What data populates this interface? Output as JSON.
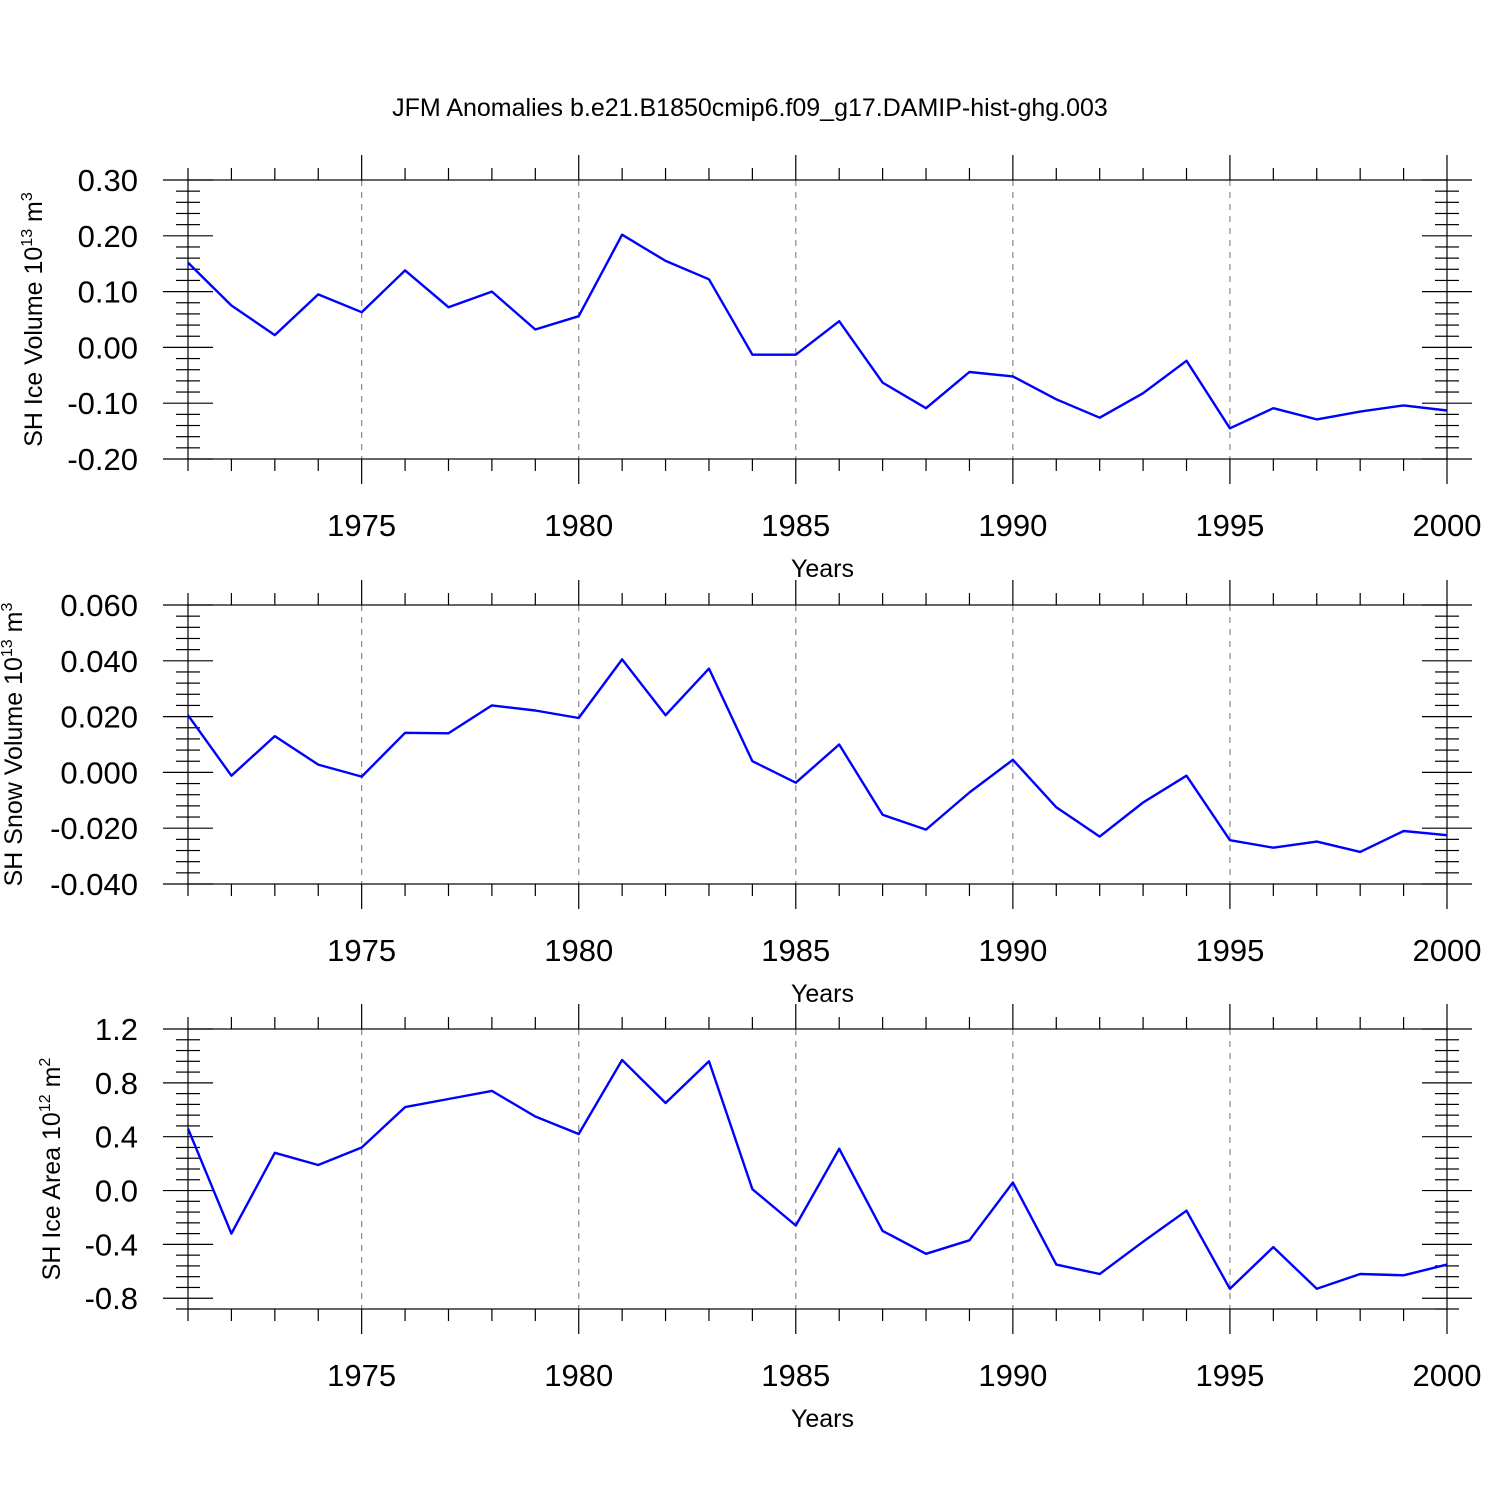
{
  "title": "JFM Anomalies b.e21.B1850cmip6.f09_g17.DAMIP-hist-ghg.003",
  "colors": {
    "series": "#0000ff",
    "grid": "#888888",
    "axis": "#000000"
  },
  "chart_data": [
    {
      "type": "line",
      "ylabel": {
        "main": "SH Ice Volume 10",
        "exp": "13",
        "unit": " m",
        "unit_exp": "3"
      },
      "xlabel": "Years",
      "xlim": [
        1971,
        2000
      ],
      "ylim": [
        -0.2,
        0.3
      ],
      "yticks": [
        -0.2,
        -0.1,
        0.0,
        0.1,
        0.2,
        0.3
      ],
      "yticklabels": [
        "-0.20",
        "-0.10",
        "0.00",
        "0.10",
        "0.20",
        "0.30"
      ],
      "xticks": [
        1975,
        1980,
        1985,
        1990,
        1995,
        2000
      ],
      "xticklabels": [
        "1975",
        "1980",
        "1985",
        "1990",
        "1995",
        "2000"
      ],
      "grid": "vertical dashed at labeled years",
      "x": [
        1971,
        1972,
        1973,
        1974,
        1975,
        1976,
        1977,
        1978,
        1979,
        1980,
        1981,
        1982,
        1983,
        1984,
        1985,
        1986,
        1987,
        1988,
        1989,
        1990,
        1991,
        1992,
        1993,
        1994,
        1995,
        1996,
        1997,
        1998,
        1999,
        2000
      ],
      "values": [
        0.152,
        0.075,
        0.022,
        0.095,
        0.063,
        0.138,
        0.072,
        0.1,
        0.032,
        0.056,
        0.202,
        0.155,
        0.122,
        -0.013,
        -0.013,
        0.047,
        -0.063,
        -0.109,
        -0.044,
        -0.052,
        -0.093,
        -0.126,
        -0.082,
        -0.024,
        -0.145,
        -0.109,
        -0.129,
        -0.115,
        -0.104,
        -0.113
      ]
    },
    {
      "type": "line",
      "ylabel": {
        "main": "SH Snow Volume 10",
        "exp": "13",
        "unit": " m",
        "unit_exp": "3"
      },
      "xlabel": "Years",
      "xlim": [
        1971,
        2000
      ],
      "ylim": [
        -0.04,
        0.06
      ],
      "yticks": [
        -0.04,
        -0.02,
        0.0,
        0.02,
        0.04,
        0.06
      ],
      "yticklabels": [
        "-0.040",
        "-0.020",
        "0.000",
        "0.020",
        "0.040",
        "0.060"
      ],
      "xticks": [
        1975,
        1980,
        1985,
        1990,
        1995,
        2000
      ],
      "xticklabels": [
        "1975",
        "1980",
        "1985",
        "1990",
        "1995",
        "2000"
      ],
      "grid": "vertical dashed at labeled years",
      "x": [
        1971,
        1972,
        1973,
        1974,
        1975,
        1976,
        1977,
        1978,
        1979,
        1980,
        1981,
        1982,
        1983,
        1984,
        1985,
        1986,
        1987,
        1988,
        1989,
        1990,
        1991,
        1992,
        1993,
        1994,
        1995,
        1996,
        1997,
        1998,
        1999,
        2000
      ],
      "values": [
        0.0205,
        -0.0012,
        0.013,
        0.0028,
        -0.0015,
        0.0142,
        0.014,
        0.024,
        0.0222,
        0.0195,
        0.0405,
        0.0205,
        0.0372,
        0.004,
        -0.0037,
        0.01,
        -0.0152,
        -0.0205,
        -0.0072,
        0.0045,
        -0.0125,
        -0.023,
        -0.0108,
        -0.0012,
        -0.0243,
        -0.027,
        -0.0248,
        -0.0285,
        -0.021,
        -0.0225
      ]
    },
    {
      "type": "line",
      "ylabel": {
        "main": "SH Ice Area 10",
        "exp": "12",
        "unit": " m",
        "unit_exp": "2"
      },
      "xlabel": "Years",
      "xlim": [
        1971,
        2000
      ],
      "ylim": [
        -0.88,
        1.2
      ],
      "yticks": [
        -0.8,
        -0.4,
        0.0,
        0.4,
        0.8,
        1.2
      ],
      "yticklabels": [
        "-0.8",
        "-0.4",
        "0.0",
        "0.4",
        "0.8",
        "1.2"
      ],
      "xticks": [
        1975,
        1980,
        1985,
        1990,
        1995,
        2000
      ],
      "xticklabels": [
        "1975",
        "1980",
        "1985",
        "1990",
        "1995",
        "2000"
      ],
      "grid": "vertical dashed at labeled years",
      "x": [
        1971,
        1972,
        1973,
        1974,
        1975,
        1976,
        1977,
        1978,
        1979,
        1980,
        1981,
        1982,
        1983,
        1984,
        1985,
        1986,
        1987,
        1988,
        1989,
        1990,
        1991,
        1992,
        1993,
        1994,
        1995,
        1996,
        1997,
        1998,
        1999,
        2000
      ],
      "values": [
        0.46,
        -0.32,
        0.28,
        0.19,
        0.32,
        0.62,
        0.68,
        0.74,
        0.55,
        0.42,
        0.97,
        0.65,
        0.96,
        0.01,
        -0.26,
        0.31,
        -0.3,
        -0.47,
        -0.37,
        0.06,
        -0.55,
        -0.62,
        -0.38,
        -0.15,
        -0.73,
        -0.42,
        -0.73,
        -0.62,
        -0.63,
        -0.55
      ]
    }
  ]
}
